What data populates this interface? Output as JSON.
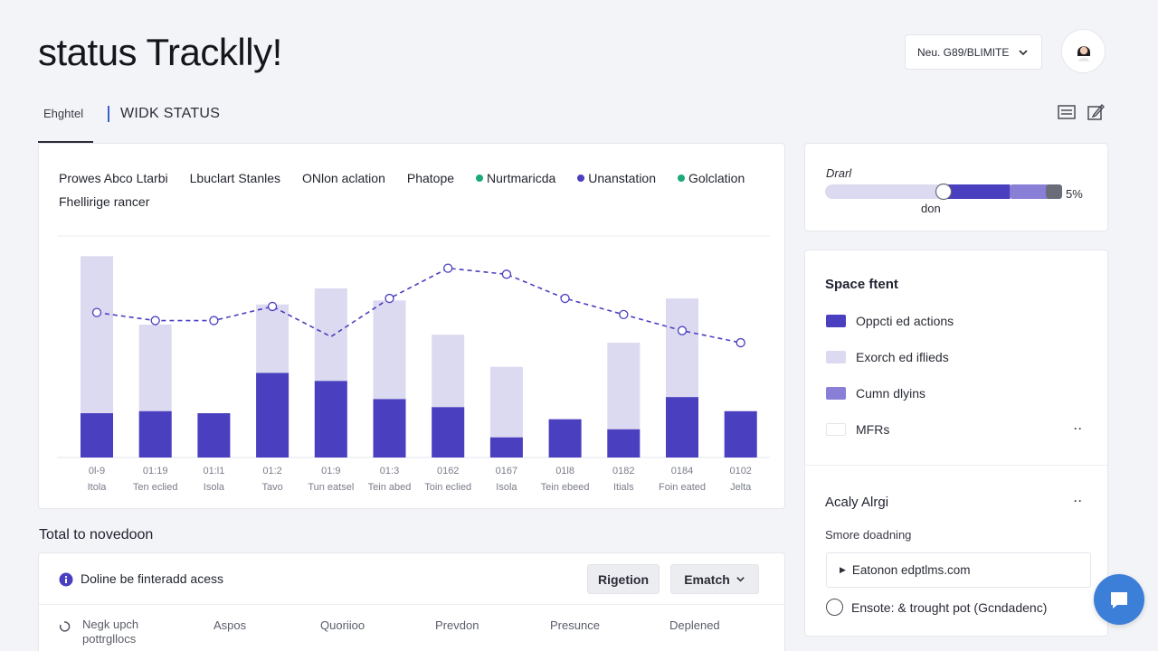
{
  "app": {
    "title": "status Tracklly!"
  },
  "header": {
    "workspace_select": "Neu. G89/BLIMITE",
    "workspace_icon": "chevron-down-icon",
    "avatar_icon": "user-avatar-icon"
  },
  "tabs": [
    {
      "label": "Ehghtel",
      "active": true
    },
    {
      "label": "WIDK STATUS",
      "active": false
    }
  ],
  "toolbar": {
    "icons": [
      "list-icon",
      "edit-icon"
    ]
  },
  "chart_card": {
    "legend_row1": [
      "Prowes Abco Ltarbi",
      "Lbuclart Stanles",
      "ONlon aclation",
      "Phatope"
    ],
    "legend_dotted": [
      {
        "label": "Nurtmaricda",
        "color": "#1aa97a"
      },
      {
        "label": "Unanstation",
        "color": "#4a3fbf"
      },
      {
        "label": "Golclation",
        "color": "#1aa97a"
      }
    ],
    "legend_row2": "Fhellirige rancer"
  },
  "chart_data": {
    "type": "bar",
    "categories": [
      "0l-9",
      "01:19",
      "01:l1",
      "01:2",
      "01:9",
      "01:3",
      "0162",
      "0167",
      "01l8",
      "0182",
      "0184",
      "0102"
    ],
    "category_sublabels": [
      "Itola",
      "Ten eclied",
      "Isola",
      "Tavo",
      "Tun eatsel",
      "Tein abed",
      "Toin eclied",
      "Isola",
      "Tein ebeed",
      "Itials",
      "Foin eated",
      "Jelta"
    ],
    "series": [
      {
        "values": [
          22,
          23,
          22,
          42,
          38,
          29,
          25,
          10,
          19,
          14,
          30,
          23
        ],
        "color": "#4a3fbf"
      },
      {
        "values": [
          100,
          66,
          22,
          76,
          84,
          78,
          61,
          45,
          19,
          57,
          79,
          23
        ],
        "color": "#dcdaf0"
      },
      {
        "values": [
          72,
          68,
          68,
          75,
          60,
          79,
          94,
          91,
          79,
          71,
          63,
          57
        ],
        "color": "#4a3fbf"
      }
    ],
    "ylim": [
      0,
      110
    ],
    "grid": false
  },
  "progress": {
    "label": "Drarl",
    "value": 0.78,
    "knob": 0.5,
    "percent_text": "5%",
    "sublabel": "don",
    "dark_color": "#4a3fbf",
    "light_color": "#dcdaf0"
  },
  "space_card": {
    "title": "Space ftent",
    "items": [
      {
        "label": "Oppcti ed actions",
        "color": "#4a3fbf"
      },
      {
        "label": "Exorch ed iflieds",
        "color": "#dcdaf0"
      },
      {
        "label": "Cumn dlyins",
        "color": "#8a7fd6"
      },
      {
        "label": "MFRs",
        "color": "#ffffff"
      }
    ],
    "more_label": "··"
  },
  "activity": {
    "title": "Acaly Alrgi",
    "subtitle": "Smore doadning",
    "link": "Eatonon edptlms.com",
    "radio": "Ensote: & trought pot (Gcndadenc)",
    "more_label": "··"
  },
  "bottom_section": {
    "heading": "Total to novedoon",
    "caption": "Doline be finteradd acess",
    "btn_rigetion": "Rigetion",
    "btn_ematch": "Ematch",
    "columns": [
      "Negk upch pottrgllocs",
      "Aspos",
      "Quoriioo",
      "Prevdon",
      "Presunce",
      "Deplened"
    ]
  },
  "fab": {
    "icon": "chat-icon"
  }
}
